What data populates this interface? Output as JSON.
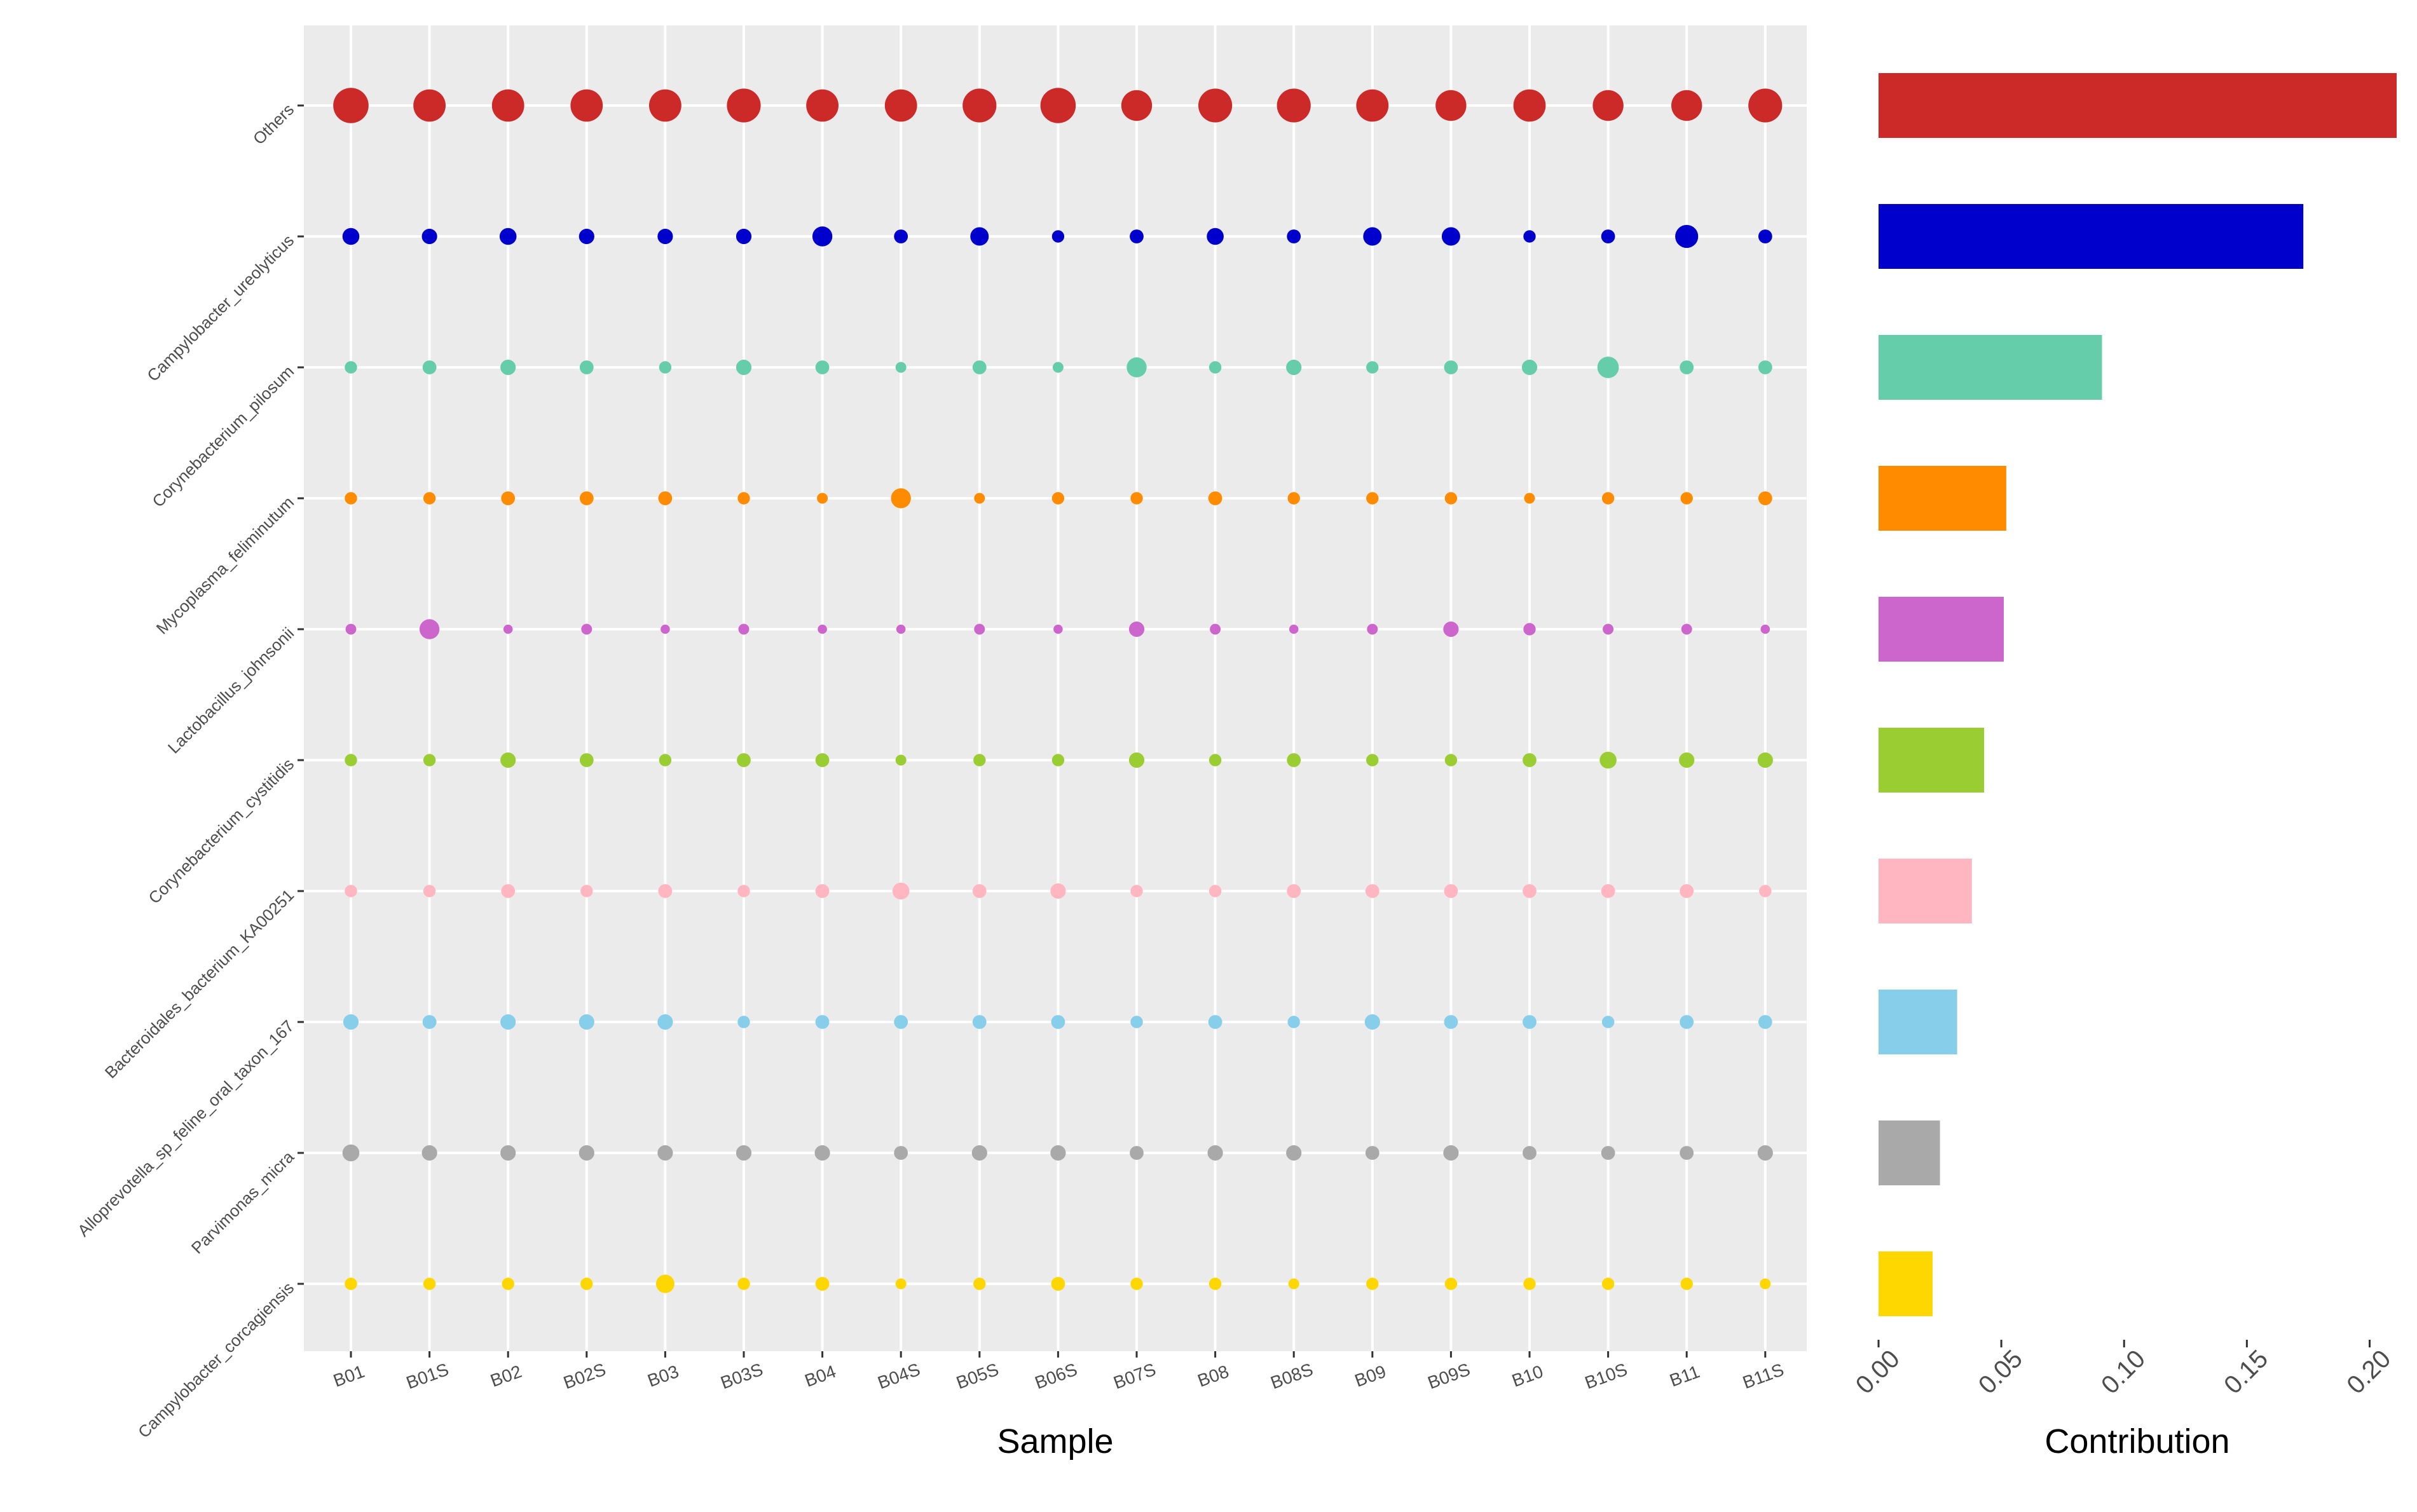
{
  "chart_data": [
    {
      "type": "scatter",
      "title": "",
      "xlabel": "Sample",
      "ylabel": "",
      "x_categories": [
        "B01",
        "B01S",
        "B02",
        "B02S",
        "B03",
        "B03S",
        "B04",
        "B04S",
        "B05S",
        "B06S",
        "B07S",
        "B08",
        "B08S",
        "B09",
        "B09S",
        "B10",
        "B10S",
        "B11",
        "B11S"
      ],
      "y_categories": [
        "Others",
        "Campylobacter_ureolyticus",
        "Corynebacterium_pilosum",
        "Mycoplasma_feliminutum",
        "Lactobacillus_johnsonii",
        "Corynebacterium_cystitidis",
        "Bacteroidales_bacterium_KA00251",
        "Alloprevotella_sp_feline_oral_taxon_167",
        "Parvimonas_micra",
        "Campylobacter_corcagiensis"
      ],
      "colors": [
        "#CC2A28",
        "#0000CD",
        "#66CDAA",
        "#FF8C00",
        "#CC66CC",
        "#9ACD32",
        "#FFB6C1",
        "#87CEEB",
        "#A9A9A9",
        "#FFD700"
      ],
      "point_size_scale": "relative abundance (not labeled)",
      "grid": true,
      "background": "#EBEBEB",
      "sizes": [
        [
          11.5,
          10.5,
          10.5,
          10.5,
          10.5,
          11,
          10.5,
          10.5,
          11,
          11.5,
          10,
          11,
          11,
          10.5,
          10,
          10.5,
          10,
          10,
          11
        ],
        [
          5.5,
          5,
          5.5,
          5,
          5,
          5,
          6.5,
          4.5,
          6,
          4,
          4.5,
          5.5,
          4.5,
          6,
          6,
          4,
          4.5,
          7.5,
          4.5
        ],
        [
          4,
          4.5,
          5,
          4.5,
          4,
          5,
          4.5,
          3.5,
          4.5,
          3.5,
          6.5,
          4,
          5,
          4,
          4.5,
          5,
          7,
          4.5,
          4.5
        ],
        [
          4,
          4,
          4.5,
          4.5,
          4.5,
          4,
          3.5,
          6.5,
          3.5,
          4,
          4,
          4.5,
          4,
          4,
          4,
          3.5,
          4,
          4,
          4.5
        ],
        [
          3.5,
          6.5,
          3,
          3.5,
          3,
          3.5,
          3,
          3,
          3.5,
          3,
          5,
          3.5,
          3,
          3.5,
          5,
          4,
          3.5,
          3.5,
          3
        ],
        [
          4,
          4,
          5,
          4.5,
          4,
          4.5,
          4.5,
          3.5,
          4,
          4,
          5,
          4,
          4.5,
          4,
          4,
          4.5,
          5.5,
          5,
          5
        ],
        [
          4,
          4,
          4.5,
          4,
          4.5,
          4,
          4.5,
          5.5,
          4.5,
          5,
          4,
          4,
          4.5,
          4.5,
          4.5,
          4.5,
          4.5,
          4.5,
          4
        ],
        [
          5,
          4.5,
          5,
          5,
          5,
          4,
          4.5,
          4.5,
          4.5,
          4.5,
          4,
          4.5,
          4,
          5,
          4.5,
          4.5,
          4,
          4.5,
          4.5
        ],
        [
          5.5,
          5,
          5,
          5,
          5,
          5,
          5,
          4.5,
          5,
          5,
          4.5,
          5,
          5,
          4.5,
          5,
          4.5,
          4.5,
          4.5,
          5
        ],
        [
          4,
          4,
          4,
          4,
          6,
          4,
          4.5,
          3.5,
          4,
          4.5,
          4,
          4,
          3.5,
          4,
          4,
          4,
          4,
          4,
          3.5
        ]
      ]
    },
    {
      "type": "bar",
      "orientation": "horizontal",
      "title": "",
      "xlabel": "Contribution",
      "ylabel": "",
      "categories": [
        "Others",
        "Campylobacter_ureolyticus",
        "Corynebacterium_pilosum",
        "Mycoplasma_feliminutum",
        "Lactobacillus_johnsonii",
        "Corynebacterium_cystitidis",
        "Bacteroidales_bacterium_KA00251",
        "Alloprevotella_sp_feline_oral_taxon_167",
        "Parvimonas_micra",
        "Campylobacter_corcagiensis"
      ],
      "values": [
        0.211,
        0.173,
        0.091,
        0.052,
        0.051,
        0.043,
        0.038,
        0.032,
        0.025,
        0.022
      ],
      "colors": [
        "#CC2A28",
        "#0000CD",
        "#66CDAA",
        "#FF8C00",
        "#CC66CC",
        "#9ACD32",
        "#FFB6C1",
        "#87CEEB",
        "#A9A9A9",
        "#FFD700"
      ],
      "xlim": [
        0,
        0.21
      ],
      "xticks": [
        "0.00",
        "0.05",
        "0.10",
        "0.15",
        "0.20"
      ],
      "tick_values": [
        0,
        0.05,
        0.1,
        0.15,
        0.2
      ],
      "grid": false
    }
  ]
}
